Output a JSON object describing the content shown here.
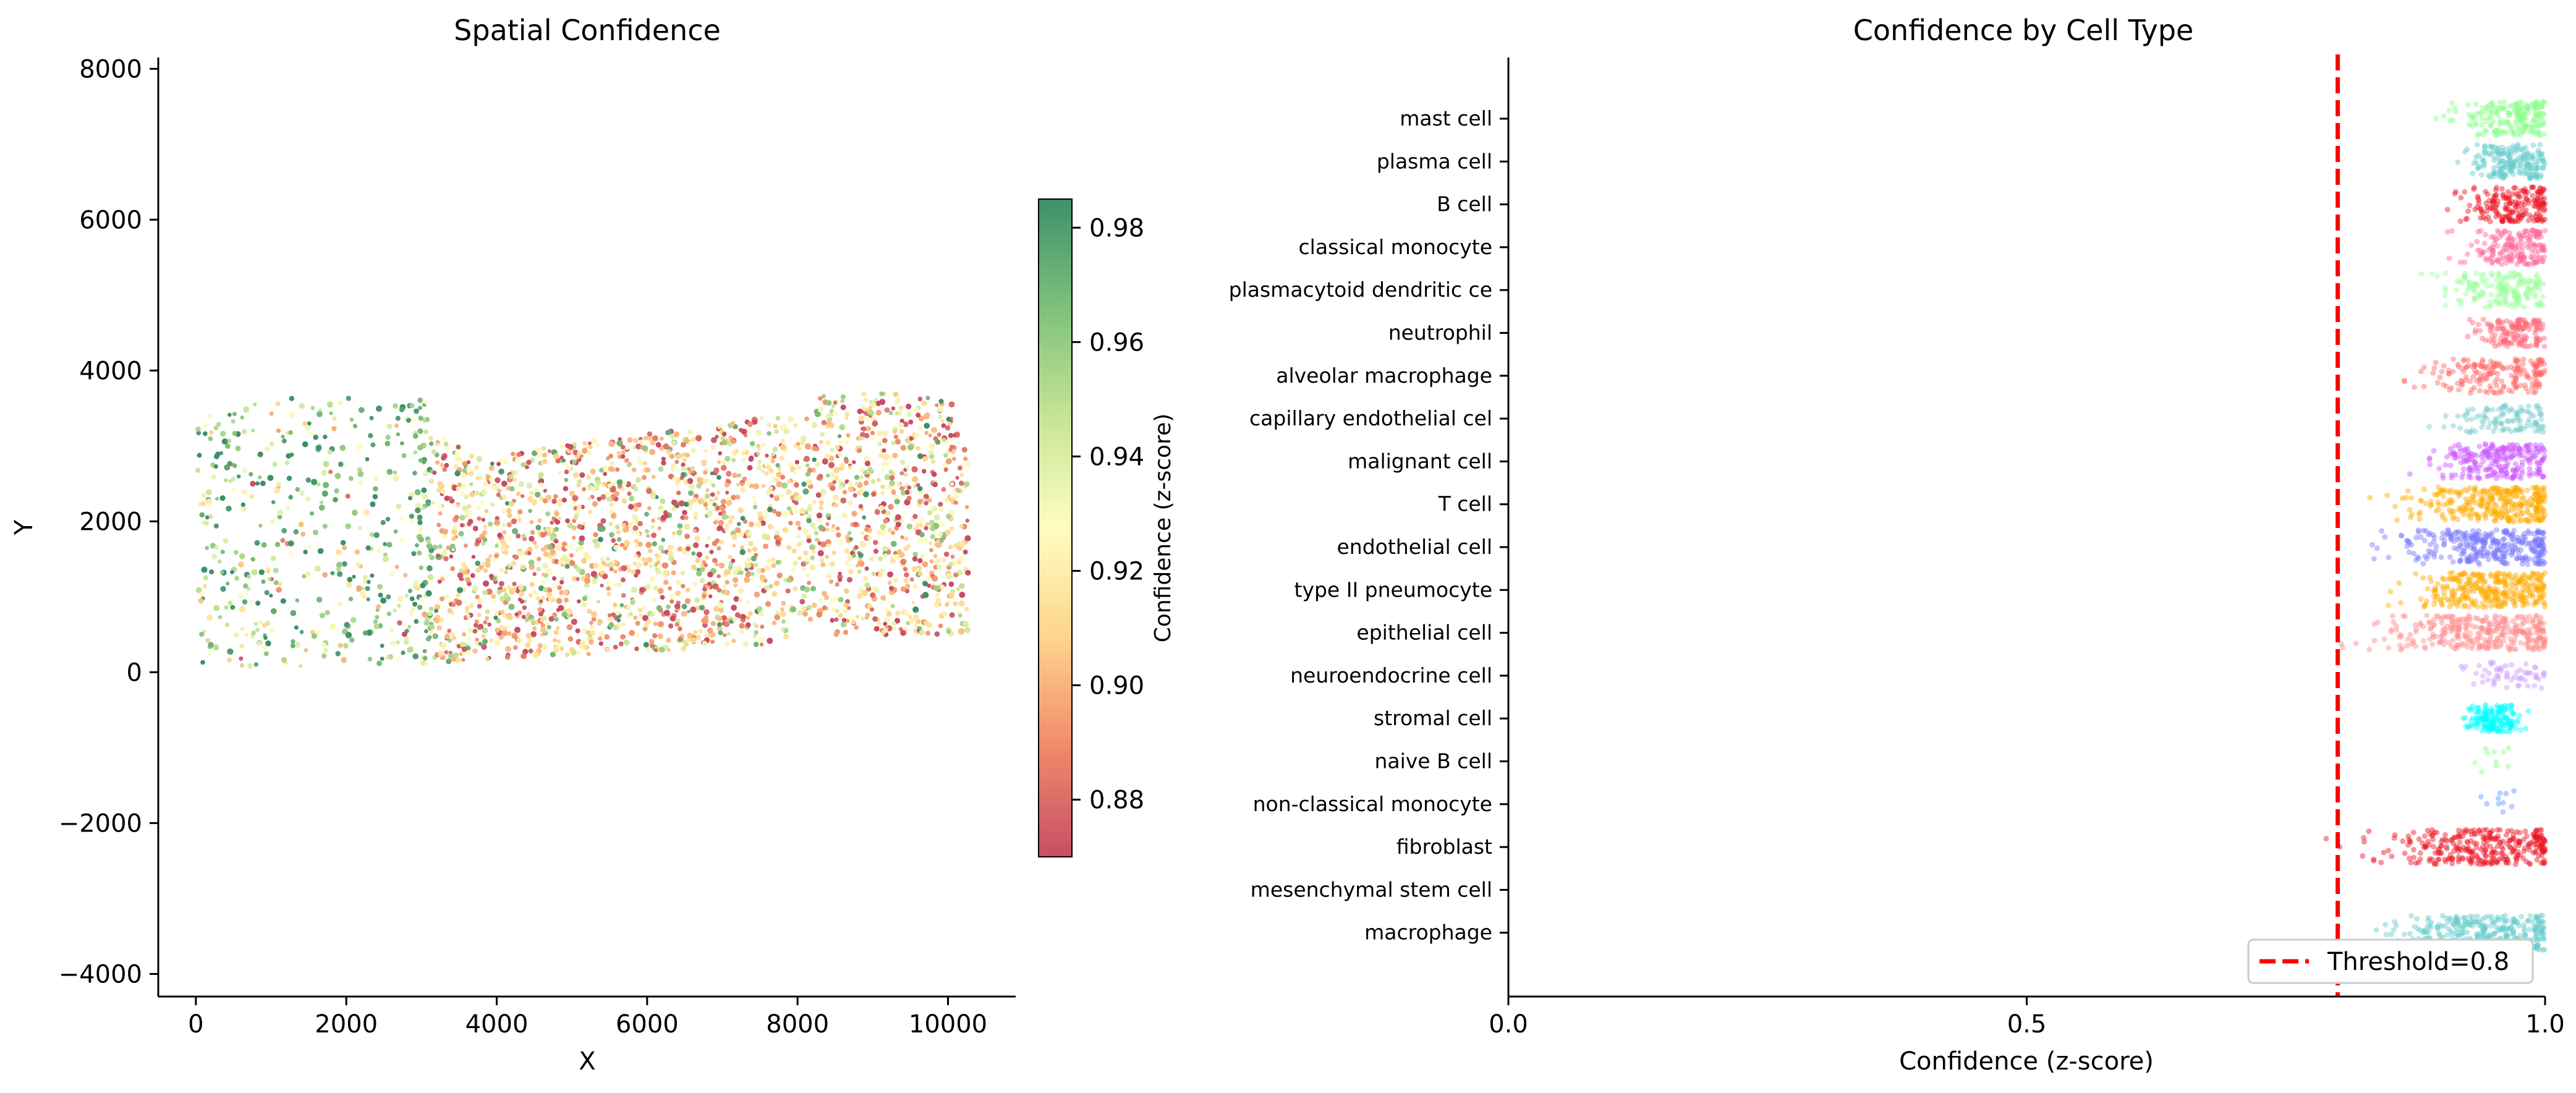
{
  "chart_data": [
    {
      "type": "scatter",
      "title": "Spatial Confidence",
      "xlabel": "X",
      "ylabel": "Y",
      "xlim": [
        -500,
        10900
      ],
      "ylim": [
        -4300,
        8150
      ],
      "xticks": [
        0,
        2000,
        4000,
        6000,
        8000,
        10000
      ],
      "xtick_labels": [
        "0",
        "2000",
        "4000",
        "6000",
        "8000",
        "10000"
      ],
      "yticks": [
        -4000,
        -2000,
        0,
        2000,
        4000,
        6000,
        8000
      ],
      "ytick_labels": [
        "−4000",
        "−2000",
        "0",
        "2000",
        "4000",
        "6000",
        "8000"
      ],
      "grid": false,
      "colormap": "RdYlGn",
      "color_range": [
        0.87,
        0.985
      ],
      "colorbar": {
        "label": "Confidence (z-score)",
        "ticks": [
          0.88,
          0.9,
          0.92,
          0.94,
          0.96,
          0.98
        ],
        "tick_labels": [
          "0.88",
          "0.90",
          "0.92",
          "0.94",
          "0.96",
          "0.98"
        ],
        "colors": [
          "#c64e66",
          "#f08a6a",
          "#fed48c",
          "#fffdc0",
          "#c6e596",
          "#7ec17b",
          "#3f8f6a"
        ]
      },
      "tissue_extent": {
        "x": [
          0,
          10300
        ],
        "y": [
          50,
          3750
        ],
        "description": "dense tissue section; left part sparse green, middle and right dense mixed red/green"
      }
    },
    {
      "type": "scatter",
      "subtype": "strip",
      "title": "Confidence by Cell Type",
      "xlabel": "Confidence (z-score)",
      "xlim": [
        0.0,
        1.0
      ],
      "xticks": [
        0.0,
        0.5,
        1.0
      ],
      "xtick_labels": [
        "0.0",
        "0.5",
        "1.0"
      ],
      "grid": false,
      "threshold": {
        "value": 0.8,
        "label": "Threshold=0.8",
        "color": "#ff0000",
        "style": "dashed"
      },
      "legend": {
        "placement": "bottom-right",
        "entries": [
          "Threshold=0.8"
        ]
      },
      "categories": [
        {
          "label": "mast cell",
          "color": "#88ff88",
          "range": [
            0.88,
            1.0
          ],
          "median": 0.97,
          "density": 0.6
        },
        {
          "label": "plasma cell",
          "color": "#66cccc",
          "range": [
            0.91,
            1.0
          ],
          "median": 0.97,
          "density": 0.6
        },
        {
          "label": "B cell",
          "color": "#ee1122",
          "range": [
            0.89,
            1.0
          ],
          "median": 0.97,
          "density": 0.6
        },
        {
          "label": "classical monocyte",
          "color": "#ff6699",
          "range": [
            0.9,
            1.0
          ],
          "median": 0.97,
          "density": 0.55
        },
        {
          "label": "plasmacytoid dendritic ce",
          "color": "#99ff99",
          "range": [
            0.86,
            1.0
          ],
          "median": 0.96,
          "density": 0.55
        },
        {
          "label": "neutrophil",
          "color": "#ff6677",
          "range": [
            0.92,
            1.0
          ],
          "median": 0.97,
          "density": 0.45
        },
        {
          "label": "alveolar macrophage",
          "color": "#ff6666",
          "range": [
            0.83,
            1.0
          ],
          "median": 0.96,
          "density": 0.6
        },
        {
          "label": "capillary endothelial cel",
          "color": "#77cccc",
          "range": [
            0.88,
            1.0
          ],
          "median": 0.96,
          "density": 0.35
        },
        {
          "label": "malignant cell",
          "color": "#cc55ff",
          "range": [
            0.86,
            1.0
          ],
          "median": 0.96,
          "density": 0.75
        },
        {
          "label": "T cell",
          "color": "#ffaa00",
          "range": [
            0.82,
            1.0
          ],
          "median": 0.95,
          "density": 1.0
        },
        {
          "label": "endothelial cell",
          "color": "#7777ff",
          "range": [
            0.8,
            1.0
          ],
          "median": 0.95,
          "density": 1.0
        },
        {
          "label": "type II pneumocyte",
          "color": "#ffaa00",
          "range": [
            0.83,
            1.0
          ],
          "median": 0.95,
          "density": 1.0
        },
        {
          "label": "epithelial cell",
          "color": "#ff8a8a",
          "range": [
            0.78,
            1.0
          ],
          "median": 0.94,
          "density": 1.0
        },
        {
          "label": "neuroendocrine cell",
          "color": "#cc99ff",
          "range": [
            0.91,
            1.0
          ],
          "median": 0.96,
          "density": 0.18
        },
        {
          "label": "stromal cell",
          "color": "#00ffff",
          "range": [
            0.92,
            0.98
          ],
          "median": 0.95,
          "density": 0.5
        },
        {
          "label": "naive B cell",
          "color": "#88ff88",
          "range": [
            0.91,
            0.97
          ],
          "median": 0.95,
          "density": 0.03
        },
        {
          "label": "non-classical monocyte",
          "color": "#6699ff",
          "range": [
            0.93,
            0.98
          ],
          "median": 0.96,
          "density": 0.03
        },
        {
          "label": "fibroblast",
          "color": "#ee1122",
          "range": [
            0.78,
            1.0
          ],
          "median": 0.94,
          "density": 1.0
        },
        {
          "label": "mesenchymal stem cell",
          "color": "#888888",
          "range": [
            0.95,
            0.96
          ],
          "median": 0.955,
          "density": 0.0
        },
        {
          "label": "macrophage",
          "color": "#66cccc",
          "range": [
            0.8,
            1.0
          ],
          "median": 0.95,
          "density": 1.0
        }
      ]
    }
  ]
}
